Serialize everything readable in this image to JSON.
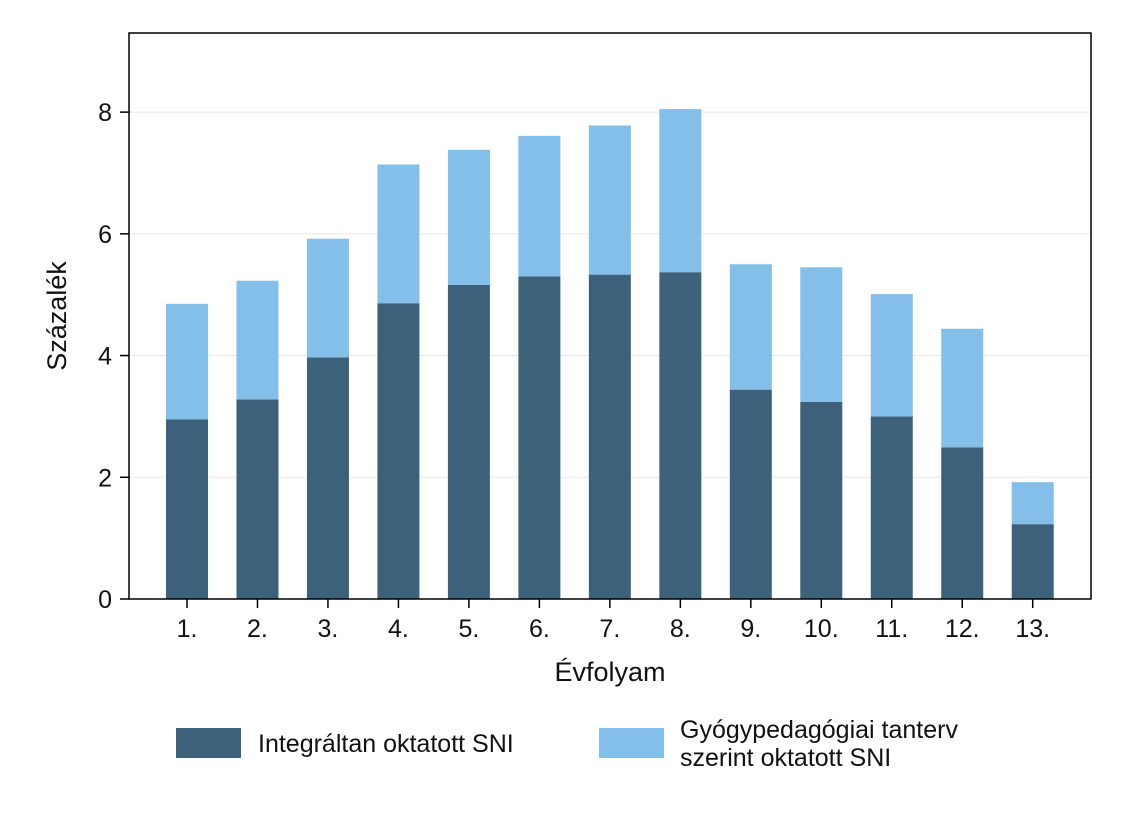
{
  "chart_data": {
    "type": "bar",
    "stacked": true,
    "categories": [
      "1.",
      "2.",
      "3.",
      "4.",
      "5.",
      "6.",
      "7.",
      "8.",
      "9.",
      "10.",
      "11.",
      "12.",
      "13."
    ],
    "series": [
      {
        "name": "Integráltan oktatott SNI",
        "color": "#3e617b",
        "values": [
          2.95,
          3.28,
          3.97,
          4.86,
          5.16,
          5.3,
          5.33,
          5.37,
          3.44,
          3.24,
          3.0,
          2.49,
          1.23
        ]
      },
      {
        "name": "Gyógypedagógiai tanterv szerint oktatott SNI",
        "name_lines": [
          "Gyógypedagógiai tanterv",
          "szerint oktatott SNI"
        ],
        "color": "#83bfe9",
        "values": [
          1.9,
          1.95,
          1.95,
          2.28,
          2.22,
          2.31,
          2.45,
          2.68,
          2.06,
          2.21,
          2.01,
          1.95,
          0.69
        ]
      }
    ],
    "title": "",
    "xlabel": "Évfolyam",
    "ylabel": "Százalék",
    "ylim": [
      0,
      9.3
    ],
    "yticks": [
      0,
      2,
      4,
      6,
      8
    ],
    "grid": true,
    "legend_position": "bottom"
  }
}
